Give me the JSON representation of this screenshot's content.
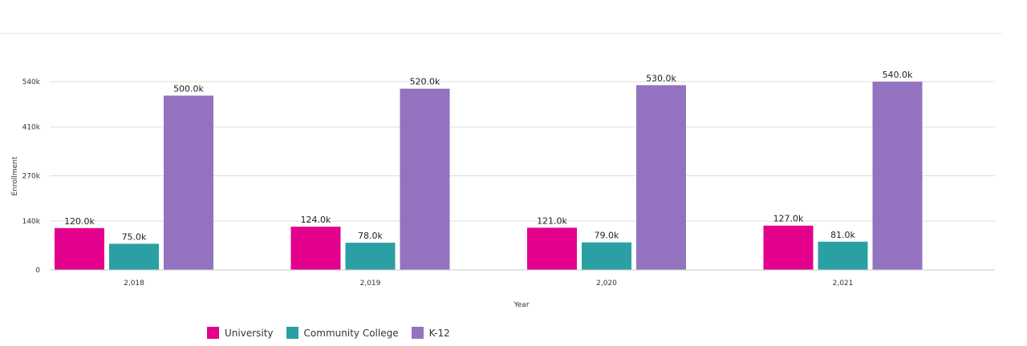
{
  "chart_data": {
    "type": "bar",
    "categories": [
      "2,018",
      "2,019",
      "2,020",
      "2,021"
    ],
    "series": [
      {
        "name": "University",
        "color": "#e3008c",
        "values": [
          120000,
          124000,
          121000,
          127000
        ],
        "labels": [
          "120.0k",
          "124.0k",
          "121.0k",
          "127.0k"
        ]
      },
      {
        "name": "Community College",
        "color": "#2aa0a4",
        "values": [
          75000,
          78000,
          79000,
          81000
        ],
        "labels": [
          "75.0k",
          "78.0k",
          "79.0k",
          "81.0k"
        ]
      },
      {
        "name": "K-12",
        "color": "#9373c0",
        "values": [
          500000,
          520000,
          530000,
          540000
        ],
        "labels": [
          "500.0k",
          "520.0k",
          "530.0k",
          "540.0k"
        ]
      }
    ],
    "xlabel": "Year",
    "ylabel": "Enrollment",
    "ylim": [
      0,
      540000
    ],
    "yticks": [
      0,
      140000,
      270000,
      410000,
      540000
    ],
    "ytick_labels": [
      "0",
      "140k",
      "270k",
      "410k",
      "540k"
    ],
    "grid": true,
    "legend_position": "bottom-left"
  }
}
